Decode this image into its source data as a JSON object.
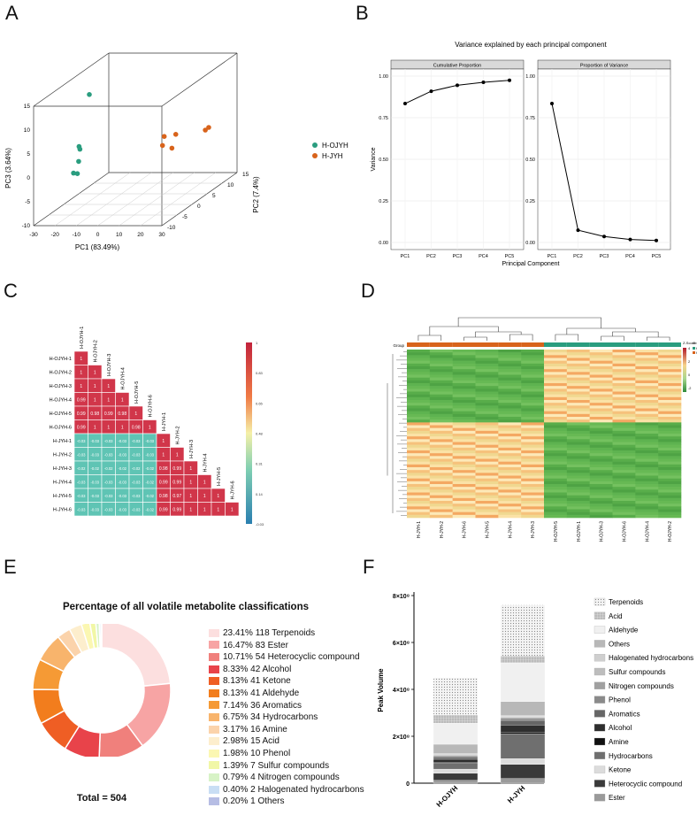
{
  "panel_labels": {
    "a": "A",
    "b": "B",
    "c": "C",
    "d": "D",
    "e": "E",
    "f": "F"
  },
  "colors": {
    "h_ojyh": "#2a9d7f",
    "h_jyh": "#d8631b",
    "corr_high": "#d1364a",
    "corr_low": "#5fc4b4"
  },
  "chart_data": [
    {
      "id": "pca3d",
      "type": "scatter",
      "title": "",
      "xlabel": "PC1 (83.49%)",
      "ylabel": "PC2 (7.4%)",
      "zlabel": "PC3 (3.64%)",
      "x_ticks": [
        "-30",
        "-20",
        "-10",
        "0",
        "10",
        "20",
        "30"
      ],
      "y_ticks": [
        "-10",
        "-5",
        "0",
        "5",
        "10",
        "15"
      ],
      "z_ticks": [
        "-10",
        "-5",
        "0",
        "5",
        "10",
        "15"
      ],
      "legend": [
        "H-OJYH",
        "H-JYH"
      ],
      "series": [
        {
          "name": "H-OJYH",
          "points": [
            [
              -18,
              0,
              13
            ],
            [
              -20,
              -2,
              3
            ],
            [
              -21,
              -1,
              2
            ],
            [
              -23,
              0,
              -1
            ],
            [
              -24,
              -1,
              -3
            ],
            [
              -25,
              1,
              -4
            ]
          ]
        },
        {
          "name": "H-JYH",
          "points": [
            [
              10,
              5,
              2
            ],
            [
              12,
              3,
              1
            ],
            [
              14,
              6,
              2
            ],
            [
              15,
              4,
              0
            ],
            [
              25,
              8,
              2
            ],
            [
              28,
              7,
              3
            ]
          ]
        }
      ]
    },
    {
      "id": "variance",
      "type": "line",
      "title": "Variance explained by each principal component",
      "xlabel": "Principal Component",
      "ylabel": "Variance",
      "categories": [
        "PC1",
        "PC2",
        "PC3",
        "PC4",
        "PC5"
      ],
      "yticks": [
        "0.00",
        "0.25",
        "0.50",
        "0.75",
        "1.00"
      ],
      "ylim": [
        0,
        1
      ],
      "facets": [
        {
          "name": "Cumulative Proportion",
          "values": [
            0.835,
            0.909,
            0.945,
            0.963,
            0.975
          ]
        },
        {
          "name": "Proportion of Variance",
          "values": [
            0.835,
            0.074,
            0.036,
            0.018,
            0.012
          ]
        }
      ]
    },
    {
      "id": "correlation",
      "type": "heatmap",
      "labels": [
        "H-OJYH-1",
        "H-OJYH-2",
        "H-OJYH-3",
        "H-OJYH-4",
        "H-OJYH-5",
        "H-OJYH-6",
        "H-JYH-1",
        "H-JYH-2",
        "H-JYH-3",
        "H-JYH-4",
        "H-JYH-5",
        "H-JYH-6"
      ],
      "rows": [
        [
          "1"
        ],
        [
          "1",
          "1"
        ],
        [
          "1",
          "1",
          "1"
        ],
        [
          "0.99",
          "1",
          "1",
          "1"
        ],
        [
          "0.99",
          "0.98",
          "0.99",
          "0.98",
          "1"
        ],
        [
          "0.99",
          "1",
          "1",
          "1",
          "0.98",
          "1"
        ],
        [
          "-0.03",
          "-0.03",
          "-0.03",
          "-0.03",
          "-0.03",
          "-0.03",
          "1"
        ],
        [
          "-0.03",
          "-0.03",
          "-0.03",
          "-0.03",
          "-0.03",
          "-0.03",
          "1",
          "1"
        ],
        [
          "-0.02",
          "-0.02",
          "-0.02",
          "-0.02",
          "-0.02",
          "-0.02",
          "0.98",
          "0.99",
          "1"
        ],
        [
          "-0.03",
          "-0.03",
          "-0.03",
          "-0.03",
          "-0.03",
          "-0.02",
          "0.99",
          "0.99",
          "1",
          "1"
        ],
        [
          "-0.03",
          "-0.03",
          "-0.03",
          "-0.03",
          "-0.03",
          "-0.02",
          "0.98",
          "0.97",
          "1",
          "1",
          "1"
        ],
        [
          "-0.03",
          "-0.03",
          "-0.03",
          "-0.03",
          "-0.03",
          "-0.02",
          "0.99",
          "0.99",
          "1",
          "1",
          "1",
          "1"
        ]
      ],
      "colorbar_ticks": [
        "1",
        "0.83",
        "0.65",
        "0.48",
        "0.31",
        "0.14",
        "-0.03"
      ]
    },
    {
      "id": "clustered_heatmap",
      "type": "heatmap",
      "columns": [
        "H-JYH-1",
        "H-JYH-2",
        "H-JYH-6",
        "H-JYH-5",
        "H-JYH-4",
        "H-JYH-3",
        "H-OJYH-5",
        "H-OJYH-1",
        "H-OJYH-3",
        "H-OJYH-6",
        "H-OJYH-4",
        "H-OJYH-2"
      ],
      "group_label": "Group",
      "zscore_label": "Z-Score",
      "group_title": "Group",
      "zscore_ticks": [
        "4",
        "2",
        "0",
        "-2"
      ],
      "groups": [
        "H-OJYH",
        "H-JYH"
      ]
    },
    {
      "id": "donut",
      "type": "pie",
      "title": "Percentage of all volatile metabolite classifications",
      "total_label": "Total = 504",
      "slices": [
        {
          "pct": "23.41%",
          "count": 118,
          "name": "Terpenoids",
          "value": 23.41,
          "color": "#fcdfdf"
        },
        {
          "pct": "16.47%",
          "count": 83,
          "name": "Ester",
          "value": 16.47,
          "color": "#f7a4a4"
        },
        {
          "pct": "10.71%",
          "count": 54,
          "name": "Heterocyclic compound",
          "value": 10.71,
          "color": "#f0807c"
        },
        {
          "pct": "8.33%",
          "count": 42,
          "name": "Alcohol",
          "value": 8.33,
          "color": "#e8434a"
        },
        {
          "pct": "8.13%",
          "count": 41,
          "name": "Ketone",
          "value": 8.13,
          "color": "#ef5e24"
        },
        {
          "pct": "8.13%",
          "count": 41,
          "name": "Aldehyde",
          "value": 8.13,
          "color": "#f27d1d"
        },
        {
          "pct": "7.14%",
          "count": 36,
          "name": "Aromatics",
          "value": 7.14,
          "color": "#f59a35"
        },
        {
          "pct": "6.75%",
          "count": 34,
          "name": "Hydrocarbons",
          "value": 6.75,
          "color": "#f8b46c"
        },
        {
          "pct": "3.17%",
          "count": 16,
          "name": "Amine",
          "value": 3.17,
          "color": "#fbd3ab"
        },
        {
          "pct": "2.98%",
          "count": 15,
          "name": "Acid",
          "value": 2.98,
          "color": "#fdeecd"
        },
        {
          "pct": "1.98%",
          "count": 10,
          "name": "Phenol",
          "value": 1.98,
          "color": "#fbf7b2"
        },
        {
          "pct": "1.39%",
          "count": 7,
          "name": "Sulfur compounds",
          "value": 1.39,
          "color": "#f1f7a6"
        },
        {
          "pct": "0.79%",
          "count": 4,
          "name": "Nitrogen compounds",
          "value": 0.79,
          "color": "#d7f3c6"
        },
        {
          "pct": "0.40%",
          "count": 2,
          "name": "Halogenated hydrocarbons",
          "value": 0.4,
          "color": "#c9def4"
        },
        {
          "pct": "0.20%",
          "count": 1,
          "name": "Others",
          "value": 0.2,
          "color": "#b6bde4"
        }
      ]
    },
    {
      "id": "stacked",
      "type": "bar",
      "ylabel": "Peak Volume",
      "yticks": [
        "0",
        "2×10⁸",
        "4×10⁸",
        "6×10⁸",
        "8×10⁸"
      ],
      "ylim": [
        0,
        800000000
      ],
      "categories": [
        "H-OJYH",
        "H-JYH"
      ],
      "legend": [
        "Terpenoids",
        "Acid",
        "Aldehyde",
        "Others",
        "Halogenated hydrocarbons",
        "Sulfur compounds",
        "Nitrogen compounds",
        "Phenol",
        "Aromatics",
        "Alcohol",
        "Amine",
        "Hydrocarbons",
        "Ketone",
        "Heterocyclic compound",
        "Ester"
      ],
      "series": [
        {
          "name": "Ester",
          "values": [
            12000000,
            20000000
          ],
          "color": "#9a9a9a"
        },
        {
          "name": "Heterocyclic compound",
          "values": [
            30000000,
            60000000
          ],
          "color": "#3a3a3a"
        },
        {
          "name": "Ketone",
          "values": [
            18000000,
            25000000
          ],
          "color": "#dcdcdc"
        },
        {
          "name": "Hydrocarbons",
          "values": [
            25000000,
            105000000
          ],
          "color": "#6f6f6f"
        },
        {
          "name": "Amine",
          "values": [
            5000000,
            8000000
          ],
          "color": "#111111"
        },
        {
          "name": "Alcohol",
          "values": [
            12000000,
            30000000
          ],
          "color": "#2e2e2e"
        },
        {
          "name": "Aromatics",
          "values": [
            10000000,
            20000000
          ],
          "color": "#666666"
        },
        {
          "name": "Phenol",
          "values": [
            5000000,
            8000000
          ],
          "color": "#8a8a8a"
        },
        {
          "name": "Nitrogen compounds",
          "values": [
            3000000,
            4000000
          ],
          "color": "#a0a0a0"
        },
        {
          "name": "Sulfur compounds",
          "values": [
            3000000,
            4000000
          ],
          "color": "#bdbdbd"
        },
        {
          "name": "Halogenated hydrocarbons",
          "values": [
            3000000,
            4000000
          ],
          "color": "#cfcfcf"
        },
        {
          "name": "Others",
          "values": [
            40000000,
            60000000
          ],
          "color": "#b8b8b8"
        },
        {
          "name": "Aldehyde",
          "values": [
            90000000,
            165000000
          ],
          "color": "#f0f0f0"
        },
        {
          "name": "Acid",
          "values": [
            35000000,
            30000000
          ],
          "color": "#a9a9a9"
        },
        {
          "name": "Terpenoids",
          "values": [
            159000000,
            217000000
          ],
          "color": "#c8c8c8"
        }
      ]
    }
  ]
}
